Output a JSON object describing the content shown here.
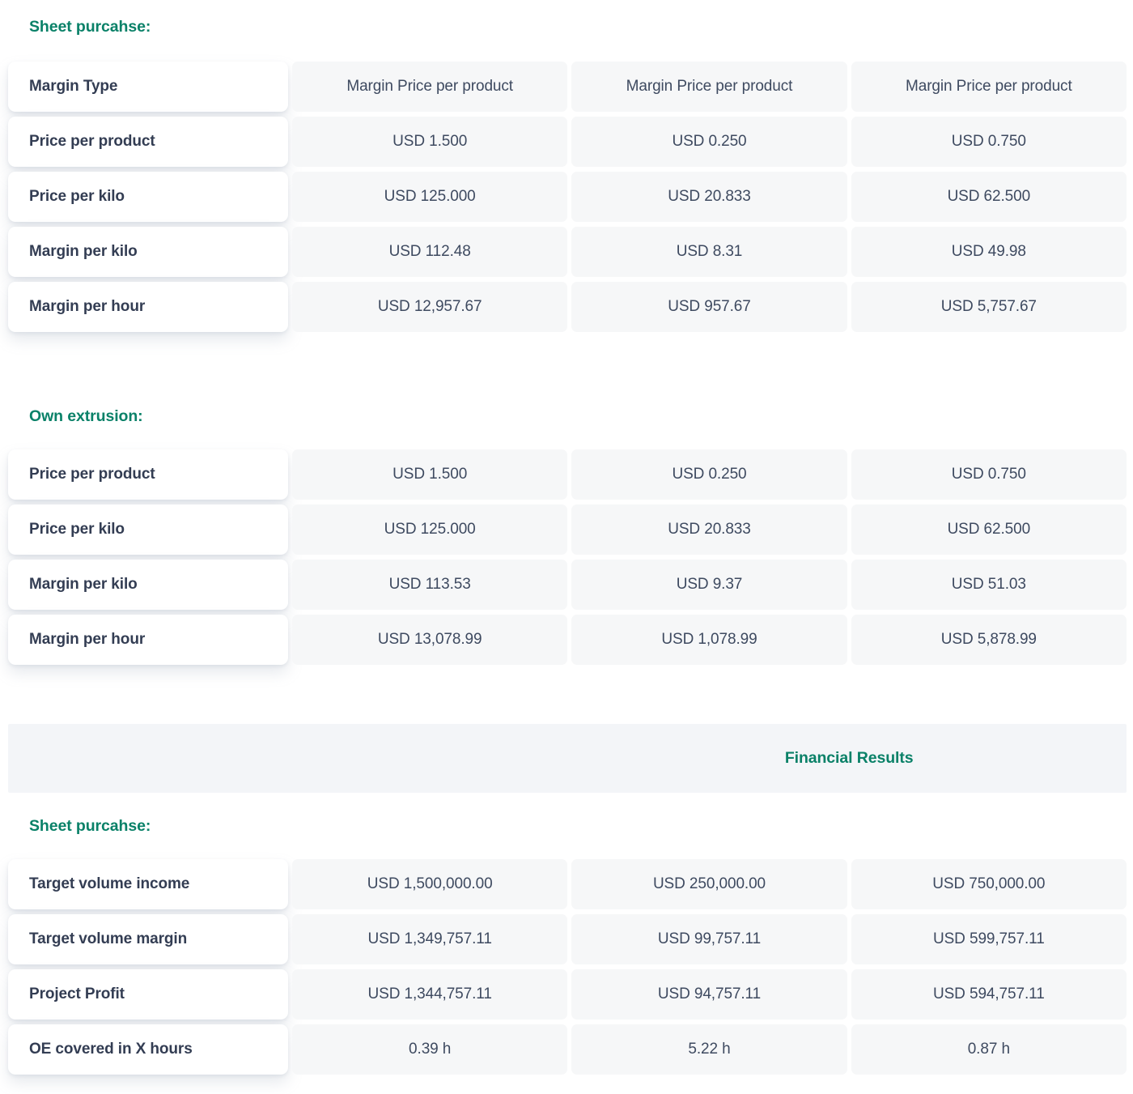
{
  "page": {
    "colors": {
      "accent_teal": "#0a8168",
      "label_text": "#333d53",
      "value_text": "#3e4a60",
      "cell_bg": "#f6f7f8",
      "band_bg": "#f3f5f8"
    }
  },
  "sections": [
    {
      "heading": "Sheet purcahse:",
      "rows": [
        {
          "label": "Margin Type",
          "values": [
            "Margin Price per product",
            "Margin Price per product",
            "Margin Price per product"
          ]
        },
        {
          "label": "Price per product",
          "values": [
            "USD 1.500",
            "USD 0.250",
            "USD 0.750"
          ]
        },
        {
          "label": "Price per kilo",
          "values": [
            "USD 125.000",
            "USD 20.833",
            "USD 62.500"
          ]
        },
        {
          "label": "Margin per kilo",
          "values": [
            "USD 112.48",
            "USD 8.31",
            "USD 49.98"
          ]
        },
        {
          "label": "Margin per hour",
          "values": [
            "USD 12,957.67",
            "USD 957.67",
            "USD 5,757.67"
          ]
        }
      ]
    },
    {
      "heading": "Own extrusion:",
      "rows": [
        {
          "label": "Price per product",
          "values": [
            "USD 1.500",
            "USD 0.250",
            "USD 0.750"
          ]
        },
        {
          "label": "Price per kilo",
          "values": [
            "USD 125.000",
            "USD 20.833",
            "USD 62.500"
          ]
        },
        {
          "label": "Margin per kilo",
          "values": [
            "USD 113.53",
            "USD 9.37",
            "USD 51.03"
          ]
        },
        {
          "label": "Margin per hour",
          "values": [
            "USD 13,078.99",
            "USD 1,078.99",
            "USD 5,878.99"
          ]
        }
      ]
    }
  ],
  "financial_results": {
    "band_title": "Financial Results",
    "heading": "Sheet purcahse:",
    "rows": [
      {
        "label": "Target volume income",
        "values": [
          "USD 1,500,000.00",
          "USD 250,000.00",
          "USD 750,000.00"
        ]
      },
      {
        "label": "Target volume margin",
        "values": [
          "USD 1,349,757.11",
          "USD 99,757.11",
          "USD 599,757.11"
        ]
      },
      {
        "label": "Project Profit",
        "values": [
          "USD 1,344,757.11",
          "USD 94,757.11",
          "USD 594,757.11"
        ]
      },
      {
        "label": "OE covered in X hours",
        "values": [
          "0.39 h",
          "5.22 h",
          "0.87 h"
        ]
      }
    ]
  }
}
